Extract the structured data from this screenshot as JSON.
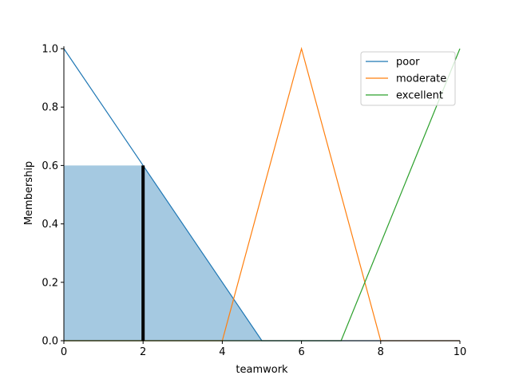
{
  "chart_data": {
    "type": "line",
    "title": "",
    "xlabel": "teamwork",
    "ylabel": "Membership",
    "xlim": [
      0,
      10
    ],
    "ylim": [
      0,
      1
    ],
    "x_ticks": [
      0,
      2,
      4,
      6,
      8,
      10
    ],
    "y_ticks": [
      0.0,
      0.2,
      0.4,
      0.6,
      0.8,
      1.0
    ],
    "x_tick_labels": [
      "0",
      "2",
      "4",
      "6",
      "8",
      "10"
    ],
    "y_tick_labels": [
      "0.0",
      "0.2",
      "0.4",
      "0.6",
      "0.8",
      "1.0"
    ],
    "grid": false,
    "legend_position": "top-right",
    "series": [
      {
        "name": "poor",
        "color": "#1f77b4",
        "x": [
          0,
          5,
          10
        ],
        "y": [
          1,
          0,
          0
        ]
      },
      {
        "name": "moderate",
        "color": "#ff7f0e",
        "x": [
          0,
          4,
          6,
          8,
          10
        ],
        "y": [
          0,
          0,
          1,
          0,
          0
        ]
      },
      {
        "name": "excellent",
        "color": "#2ca02c",
        "x": [
          0,
          7,
          10
        ],
        "y": [
          0,
          0,
          1
        ]
      }
    ],
    "activation": {
      "color": "#1f77b4",
      "opacity": 0.4,
      "x": [
        0,
        2,
        5
      ],
      "y": [
        0.6,
        0.6,
        0
      ]
    },
    "input_marker": {
      "x": 2,
      "y": 0.6,
      "color": "#000000"
    }
  }
}
